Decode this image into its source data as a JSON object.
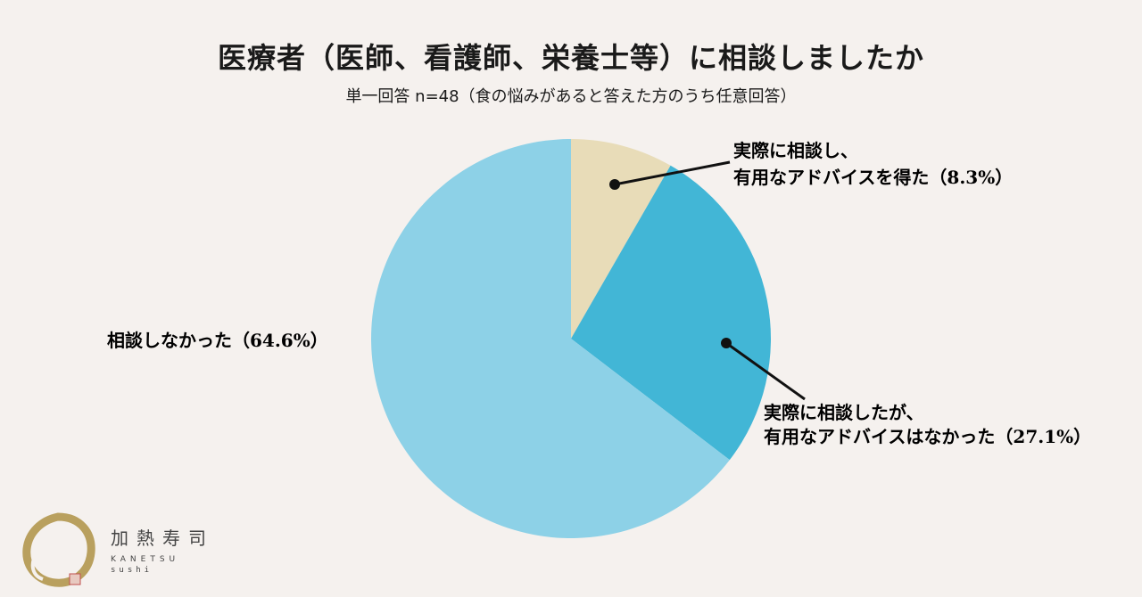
{
  "header": {
    "title": "医療者（医師、看護師、栄養士等）に相談しましたか",
    "subtitle": "単一回答 n=48（食の悩みがあると答えた方のうち任意回答）"
  },
  "chart_data": {
    "type": "pie",
    "title": "医療者（医師、看護師、栄養士等）に相談しましたか",
    "subtitle": "単一回答 n=48（食の悩みがあると答えた方のうち任意回答）",
    "start": "12 o'clock, clockwise",
    "slices": [
      {
        "label_lines": [
          "実際に相談し、",
          "有用なアドバイスを得た（8.3%）"
        ],
        "value": 8.3,
        "color": "#e8dcb8"
      },
      {
        "label_lines": [
          "実際に相談したが、",
          "有用なアドバイスはなかった（27.1%）"
        ],
        "value": 27.1,
        "color": "#42b6d6"
      },
      {
        "label_lines": [
          "相談しなかった（64.6%）"
        ],
        "value": 64.6,
        "color": "#8dd1e7"
      }
    ]
  },
  "brand": {
    "name_kanji": "加熱寿司",
    "name_en_line1": "KANETSU",
    "name_en_line2": "sushi",
    "accent_color": "#b9a05e"
  }
}
